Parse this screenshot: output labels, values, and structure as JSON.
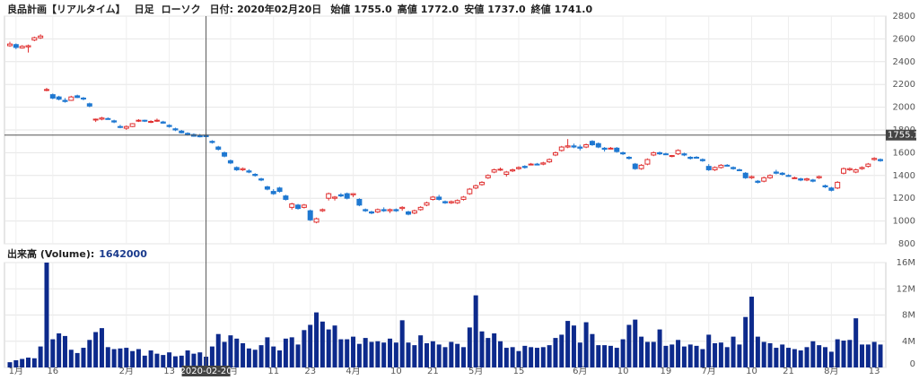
{
  "header": {
    "name": "良品計画【リアルタイム】",
    "interval": "日足",
    "style": "ローソク",
    "date_label": "日付:",
    "date": "2020年02月20日",
    "fields": [
      {
        "name": "始値",
        "value": {
          "value": 1755,
          "label": "1755.0"
        }
      },
      {
        "name": "高値",
        "value": {
          "value": 1772,
          "label": "1772.0"
        }
      },
      {
        "name": "安値",
        "value": {
          "value": 1737,
          "label": "1737.0"
        }
      },
      {
        "name": "終値",
        "value": {
          "value": 1741,
          "label": "1741.0"
        }
      }
    ]
  },
  "chart_data": [
    {
      "type": "candlestick",
      "up_color": "#e03030",
      "down_color": "#1f78d1",
      "grid": true,
      "ylim": [
        800,
        2800
      ],
      "yticks": [
        800,
        1000,
        1200,
        1400,
        1600,
        1800,
        2000,
        2200,
        2400,
        2600,
        2800
      ],
      "crosshair": {
        "y": 1755.1
      },
      "categories": [
        null,
        "1月",
        null,
        null,
        null,
        null,
        null,
        "16",
        null,
        null,
        null,
        null,
        null,
        null,
        null,
        null,
        null,
        null,
        null,
        "2月",
        null,
        null,
        null,
        null,
        null,
        null,
        "13",
        null,
        null,
        null,
        null,
        null,
        "2020-02-20",
        null,
        null,
        null,
        "3月",
        null,
        null,
        null,
        null,
        null,
        null,
        "11",
        null,
        null,
        null,
        null,
        null,
        "23",
        null,
        null,
        null,
        null,
        null,
        null,
        "4月",
        null,
        null,
        null,
        null,
        null,
        null,
        "10",
        null,
        null,
        null,
        null,
        null,
        "21",
        null,
        null,
        null,
        null,
        null,
        null,
        "5月",
        null,
        null,
        null,
        null,
        null,
        null,
        "15",
        null,
        null,
        null,
        null,
        null,
        null,
        null,
        null,
        null,
        "6月",
        null,
        null,
        null,
        null,
        null,
        null,
        "10",
        null,
        null,
        null,
        null,
        null,
        null,
        "19",
        null,
        null,
        null,
        null,
        null,
        null,
        "7月",
        null,
        null,
        null,
        null,
        null,
        null,
        "10",
        null,
        null,
        null,
        null,
        null,
        "21",
        null,
        null,
        null,
        null,
        null,
        null,
        "8月",
        null,
        null,
        null,
        null,
        null,
        null,
        "13",
        null
      ],
      "ohlc": [
        [
          2540,
          2575,
          2530,
          2555
        ],
        [
          2550,
          2560,
          2510,
          2525
        ],
        [
          2520,
          2545,
          2515,
          2535
        ],
        [
          2530,
          2550,
          2480,
          2540
        ],
        [
          2590,
          2620,
          2580,
          2610
        ],
        [
          2610,
          2640,
          2600,
          2625
        ],
        [
          2150,
          2170,
          2140,
          2155
        ],
        [
          2110,
          2120,
          2070,
          2080
        ],
        [
          2090,
          2100,
          2060,
          2070
        ],
        [
          2060,
          2080,
          2040,
          2050
        ],
        [
          2060,
          2100,
          2055,
          2090
        ],
        [
          2100,
          2110,
          2080,
          2085
        ],
        [
          2080,
          2090,
          2060,
          2075
        ],
        [
          2030,
          2040,
          2000,
          2010
        ],
        [
          1890,
          1900,
          1870,
          1895
        ],
        [
          1895,
          1915,
          1885,
          1905
        ],
        [
          1900,
          1910,
          1890,
          1895
        ],
        [
          1880,
          1890,
          1860,
          1870
        ],
        [
          1830,
          1845,
          1815,
          1825
        ],
        [
          1815,
          1840,
          1800,
          1830
        ],
        [
          1830,
          1860,
          1825,
          1855
        ],
        [
          1880,
          1895,
          1870,
          1885
        ],
        [
          1885,
          1890,
          1870,
          1880
        ],
        [
          1870,
          1885,
          1860,
          1875
        ],
        [
          1880,
          1900,
          1870,
          1885
        ],
        [
          1870,
          1880,
          1855,
          1860
        ],
        [
          1840,
          1850,
          1820,
          1830
        ],
        [
          1810,
          1820,
          1790,
          1800
        ],
        [
          1790,
          1800,
          1770,
          1775
        ],
        [
          1770,
          1780,
          1750,
          1760
        ],
        [
          1760,
          1770,
          1740,
          1745
        ],
        [
          1750,
          1765,
          1735,
          1740
        ],
        [
          1755,
          1772,
          1737,
          1741
        ],
        [
          1700,
          1710,
          1680,
          1690
        ],
        [
          1650,
          1660,
          1620,
          1630
        ],
        [
          1600,
          1610,
          1560,
          1570
        ],
        [
          1530,
          1540,
          1500,
          1510
        ],
        [
          1470,
          1480,
          1440,
          1450
        ],
        [
          1450,
          1470,
          1440,
          1460
        ],
        [
          1440,
          1455,
          1420,
          1430
        ],
        [
          1410,
          1420,
          1390,
          1400
        ],
        [
          1370,
          1380,
          1350,
          1360
        ],
        [
          1300,
          1310,
          1270,
          1280
        ],
        [
          1260,
          1280,
          1230,
          1240
        ],
        [
          1290,
          1300,
          1250,
          1260
        ],
        [
          1220,
          1230,
          1180,
          1190
        ],
        [
          1120,
          1160,
          1100,
          1150
        ],
        [
          1140,
          1150,
          1100,
          1110
        ],
        [
          1120,
          1150,
          1110,
          1140
        ],
        [
          1090,
          1100,
          1000,
          1010
        ],
        [
          990,
          1030,
          980,
          1020
        ],
        [
          1090,
          1110,
          1080,
          1100
        ],
        [
          1200,
          1250,
          1180,
          1240
        ],
        [
          1200,
          1220,
          1180,
          1210
        ],
        [
          1230,
          1245,
          1210,
          1220
        ],
        [
          1240,
          1250,
          1190,
          1200
        ],
        [
          1230,
          1245,
          1210,
          1240
        ],
        [
          1190,
          1200,
          1130,
          1140
        ],
        [
          1100,
          1110,
          1080,
          1090
        ],
        [
          1080,
          1090,
          1060,
          1070
        ],
        [
          1080,
          1110,
          1070,
          1100
        ],
        [
          1100,
          1120,
          1080,
          1090
        ],
        [
          1090,
          1110,
          1070,
          1100
        ],
        [
          1100,
          1110,
          1080,
          1090
        ],
        [
          1110,
          1130,
          1090,
          1120
        ],
        [
          1080,
          1090,
          1050,
          1060
        ],
        [
          1070,
          1100,
          1060,
          1090
        ],
        [
          1100,
          1130,
          1090,
          1120
        ],
        [
          1140,
          1170,
          1130,
          1160
        ],
        [
          1190,
          1220,
          1180,
          1210
        ],
        [
          1210,
          1230,
          1180,
          1190
        ],
        [
          1170,
          1180,
          1150,
          1160
        ],
        [
          1160,
          1180,
          1150,
          1170
        ],
        [
          1160,
          1190,
          1150,
          1180
        ],
        [
          1190,
          1220,
          1180,
          1210
        ],
        [
          1240,
          1290,
          1230,
          1280
        ],
        [
          1290,
          1320,
          1280,
          1310
        ],
        [
          1320,
          1350,
          1310,
          1340
        ],
        [
          1380,
          1410,
          1370,
          1400
        ],
        [
          1430,
          1460,
          1420,
          1450
        ],
        [
          1450,
          1470,
          1440,
          1455
        ],
        [
          1410,
          1440,
          1390,
          1430
        ],
        [
          1440,
          1460,
          1430,
          1450
        ],
        [
          1460,
          1480,
          1450,
          1470
        ],
        [
          1480,
          1490,
          1460,
          1470
        ],
        [
          1500,
          1510,
          1490,
          1500
        ],
        [
          1500,
          1510,
          1490,
          1495
        ],
        [
          1500,
          1520,
          1490,
          1510
        ],
        [
          1520,
          1550,
          1510,
          1540
        ],
        [
          1580,
          1610,
          1570,
          1600
        ],
        [
          1620,
          1660,
          1610,
          1650
        ],
        [
          1650,
          1720,
          1640,
          1660
        ],
        [
          1660,
          1680,
          1640,
          1650
        ],
        [
          1650,
          1670,
          1620,
          1640
        ],
        [
          1650,
          1680,
          1640,
          1670
        ],
        [
          1700,
          1710,
          1660,
          1670
        ],
        [
          1680,
          1690,
          1640,
          1650
        ],
        [
          1640,
          1650,
          1610,
          1630
        ],
        [
          1640,
          1650,
          1630,
          1640
        ],
        [
          1640,
          1650,
          1600,
          1610
        ],
        [
          1600,
          1610,
          1580,
          1590
        ],
        [
          1560,
          1570,
          1540,
          1550
        ],
        [
          1500,
          1510,
          1450,
          1460
        ],
        [
          1460,
          1500,
          1450,
          1490
        ],
        [
          1500,
          1550,
          1490,
          1540
        ],
        [
          1580,
          1610,
          1570,
          1600
        ],
        [
          1600,
          1610,
          1580,
          1590
        ],
        [
          1590,
          1600,
          1580,
          1585
        ],
        [
          1570,
          1580,
          1560,
          1575
        ],
        [
          1590,
          1630,
          1580,
          1620
        ],
        [
          1590,
          1600,
          1570,
          1580
        ],
        [
          1560,
          1570,
          1540,
          1550
        ],
        [
          1560,
          1570,
          1550,
          1555
        ],
        [
          1540,
          1550,
          1520,
          1530
        ],
        [
          1480,
          1500,
          1440,
          1450
        ],
        [
          1450,
          1480,
          1440,
          1470
        ],
        [
          1470,
          1500,
          1460,
          1490
        ],
        [
          1490,
          1500,
          1480,
          1485
        ],
        [
          1470,
          1480,
          1450,
          1460
        ],
        [
          1450,
          1460,
          1440,
          1445
        ],
        [
          1420,
          1430,
          1370,
          1380
        ],
        [
          1380,
          1400,
          1370,
          1390
        ],
        [
          1350,
          1360,
          1330,
          1340
        ],
        [
          1350,
          1390,
          1340,
          1380
        ],
        [
          1380,
          1410,
          1370,
          1400
        ],
        [
          1430,
          1450,
          1410,
          1420
        ],
        [
          1420,
          1430,
          1400,
          1410
        ],
        [
          1400,
          1410,
          1390,
          1395
        ],
        [
          1380,
          1390,
          1370,
          1380
        ],
        [
          1370,
          1380,
          1350,
          1360
        ],
        [
          1360,
          1380,
          1350,
          1370
        ],
        [
          1360,
          1370,
          1340,
          1350
        ],
        [
          1380,
          1400,
          1370,
          1390
        ],
        [
          1310,
          1320,
          1290,
          1300
        ],
        [
          1290,
          1300,
          1260,
          1270
        ],
        [
          1290,
          1350,
          1280,
          1340
        ],
        [
          1420,
          1470,
          1410,
          1460
        ],
        [
          1450,
          1470,
          1440,
          1460
        ],
        [
          1430,
          1460,
          1420,
          1450
        ],
        [
          1460,
          1480,
          1450,
          1470
        ],
        [
          1480,
          1510,
          1470,
          1500
        ],
        [
          1540,
          1560,
          1530,
          1550
        ],
        [
          1540,
          1550,
          1520,
          1530
        ]
      ]
    },
    {
      "type": "bar",
      "title": "出来高 (Volume):",
      "current": 1642000,
      "color": "#0d2a8c",
      "grid": true,
      "ylim": [
        0,
        16000000
      ],
      "yticks": [
        0,
        {
          "value": 4000000,
          "label": "4M"
        },
        {
          "value": 8000000,
          "label": "8M"
        },
        {
          "value": 12000000,
          "label": "12M"
        },
        {
          "value": 16000000,
          "label": "16M"
        }
      ],
      "values": [
        800000,
        1100000,
        1300000,
        1500000,
        1400000,
        3200000,
        16000000,
        4300000,
        5200000,
        4800000,
        2700000,
        2200000,
        3000000,
        4200000,
        5400000,
        6000000,
        3100000,
        2800000,
        2900000,
        3000000,
        2500000,
        2800000,
        1800000,
        2600000,
        2100000,
        1900000,
        2300000,
        1700000,
        1800000,
        2600000,
        2100000,
        2300000,
        1642000,
        3200000,
        5100000,
        3900000,
        4900000,
        4400000,
        3700000,
        2900000,
        2700000,
        3400000,
        4600000,
        3200000,
        2600000,
        4400000,
        4600000,
        3500000,
        5700000,
        6500000,
        8400000,
        7000000,
        5800000,
        6400000,
        4300000,
        4300000,
        4700000,
        3600000,
        4500000,
        3900000,
        4000000,
        3800000,
        4400000,
        3800000,
        7200000,
        3800000,
        3400000,
        4900000,
        3700000,
        4000000,
        3500000,
        3100000,
        3900000,
        3600000,
        3100000,
        6100000,
        11000000,
        5500000,
        4500000,
        5200000,
        4000000,
        3000000,
        3100000,
        2500000,
        3300000,
        3100000,
        3000000,
        3100000,
        3400000,
        4500000,
        5000000,
        7100000,
        6400000,
        3800000,
        6900000,
        5100000,
        3400000,
        3400000,
        3300000,
        3000000,
        4300000,
        6500000,
        7300000,
        4700000,
        3900000,
        3900000,
        5800000,
        3300000,
        3500000,
        4200000,
        3200000,
        3500000,
        3300000,
        2800000,
        5000000,
        3700000,
        3800000,
        3100000,
        4700000,
        3500000,
        7700000,
        10800000,
        4700000,
        3900000,
        3700000,
        3000000,
        3500000,
        3000000,
        2800000,
        2600000,
        3100000,
        4000000,
        3400000,
        3100000,
        2400000,
        4300000,
        4100000,
        4200000,
        7500000,
        3500000,
        3500000,
        3900000,
        3500000
      ]
    }
  ]
}
